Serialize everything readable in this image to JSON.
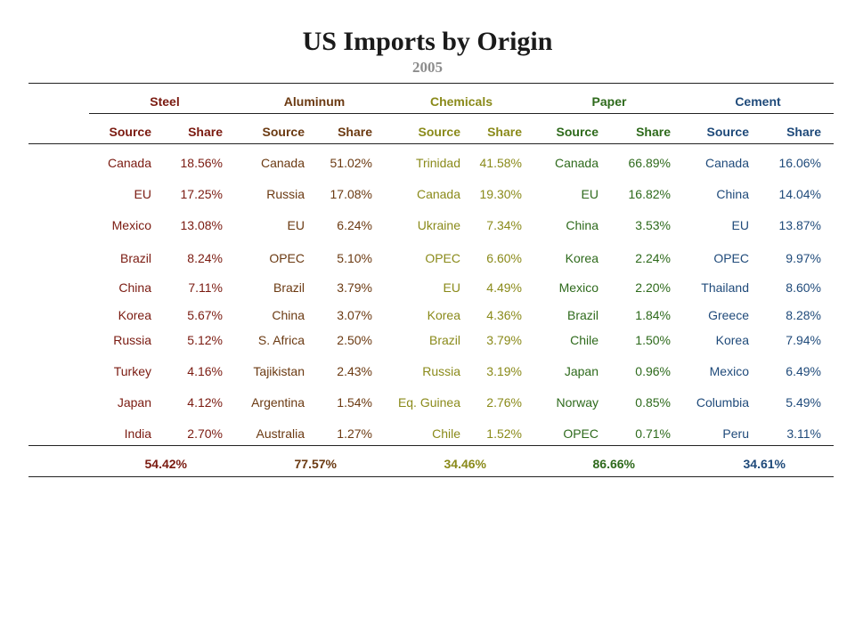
{
  "title": "US Imports by Origin",
  "subtitle": "2005",
  "colors": {
    "Steel": "#7a1a10",
    "Aluminum": "#6b3a12",
    "Chemicals": "#8a8a1a",
    "Paper": "#2e6a1c",
    "Cement": "#1f4a7a"
  },
  "chart_data": {
    "type": "table",
    "title": "US Imports by Origin",
    "subtitle": "2005",
    "sub_headers": {
      "source": "Source",
      "share": "Share"
    },
    "categories": [
      {
        "name": "Steel",
        "rows": [
          [
            "Canada",
            "18.56%"
          ],
          [
            "EU",
            "17.25%"
          ],
          [
            "Mexico",
            "13.08%"
          ],
          [
            "Brazil",
            "8.24%"
          ],
          [
            "China",
            "7.11%"
          ],
          [
            "Korea",
            "5.67%"
          ],
          [
            "Russia",
            "5.12%"
          ],
          [
            "Turkey",
            "4.16%"
          ],
          [
            "Japan",
            "4.12%"
          ],
          [
            "India",
            "2.70%"
          ]
        ],
        "total": "54.42%"
      },
      {
        "name": "Aluminum",
        "rows": [
          [
            "Canada",
            "51.02%"
          ],
          [
            "Russia",
            "17.08%"
          ],
          [
            "EU",
            "6.24%"
          ],
          [
            "OPEC",
            "5.10%"
          ],
          [
            "Brazil",
            "3.79%"
          ],
          [
            "China",
            "3.07%"
          ],
          [
            "S. Africa",
            "2.50%"
          ],
          [
            "Tajikistan",
            "2.43%"
          ],
          [
            "Argentina",
            "1.54%"
          ],
          [
            "Australia",
            "1.27%"
          ]
        ],
        "total": "77.57%"
      },
      {
        "name": "Chemicals",
        "rows": [
          [
            "Trinidad",
            "41.58%"
          ],
          [
            "Canada",
            "19.30%"
          ],
          [
            "Ukraine",
            "7.34%"
          ],
          [
            "OPEC",
            "6.60%"
          ],
          [
            "EU",
            "4.49%"
          ],
          [
            "Korea",
            "4.36%"
          ],
          [
            "Brazil",
            "3.79%"
          ],
          [
            "Russia",
            "3.19%"
          ],
          [
            "Eq. Guinea",
            "2.76%"
          ],
          [
            "Chile",
            "1.52%"
          ]
        ],
        "total": "34.46%"
      },
      {
        "name": "Paper",
        "rows": [
          [
            "Canada",
            "66.89%"
          ],
          [
            "EU",
            "16.82%"
          ],
          [
            "China",
            "3.53%"
          ],
          [
            "Korea",
            "2.24%"
          ],
          [
            "Mexico",
            "2.20%"
          ],
          [
            "Brazil",
            "1.84%"
          ],
          [
            "Chile",
            "1.50%"
          ],
          [
            "Japan",
            "0.96%"
          ],
          [
            "Norway",
            "0.85%"
          ],
          [
            "OPEC",
            "0.71%"
          ]
        ],
        "total": "86.66%"
      },
      {
        "name": "Cement",
        "rows": [
          [
            "Canada",
            "16.06%"
          ],
          [
            "China",
            "14.04%"
          ],
          [
            "EU",
            "13.87%"
          ],
          [
            "OPEC",
            "9.97%"
          ],
          [
            "Thailand",
            "8.60%"
          ],
          [
            "Greece",
            "8.28%"
          ],
          [
            "Korea",
            "7.94%"
          ],
          [
            "Mexico",
            "6.49%"
          ],
          [
            "Columbia",
            "5.49%"
          ],
          [
            "Peru",
            "3.11%"
          ]
        ],
        "total": "34.61%"
      }
    ]
  }
}
